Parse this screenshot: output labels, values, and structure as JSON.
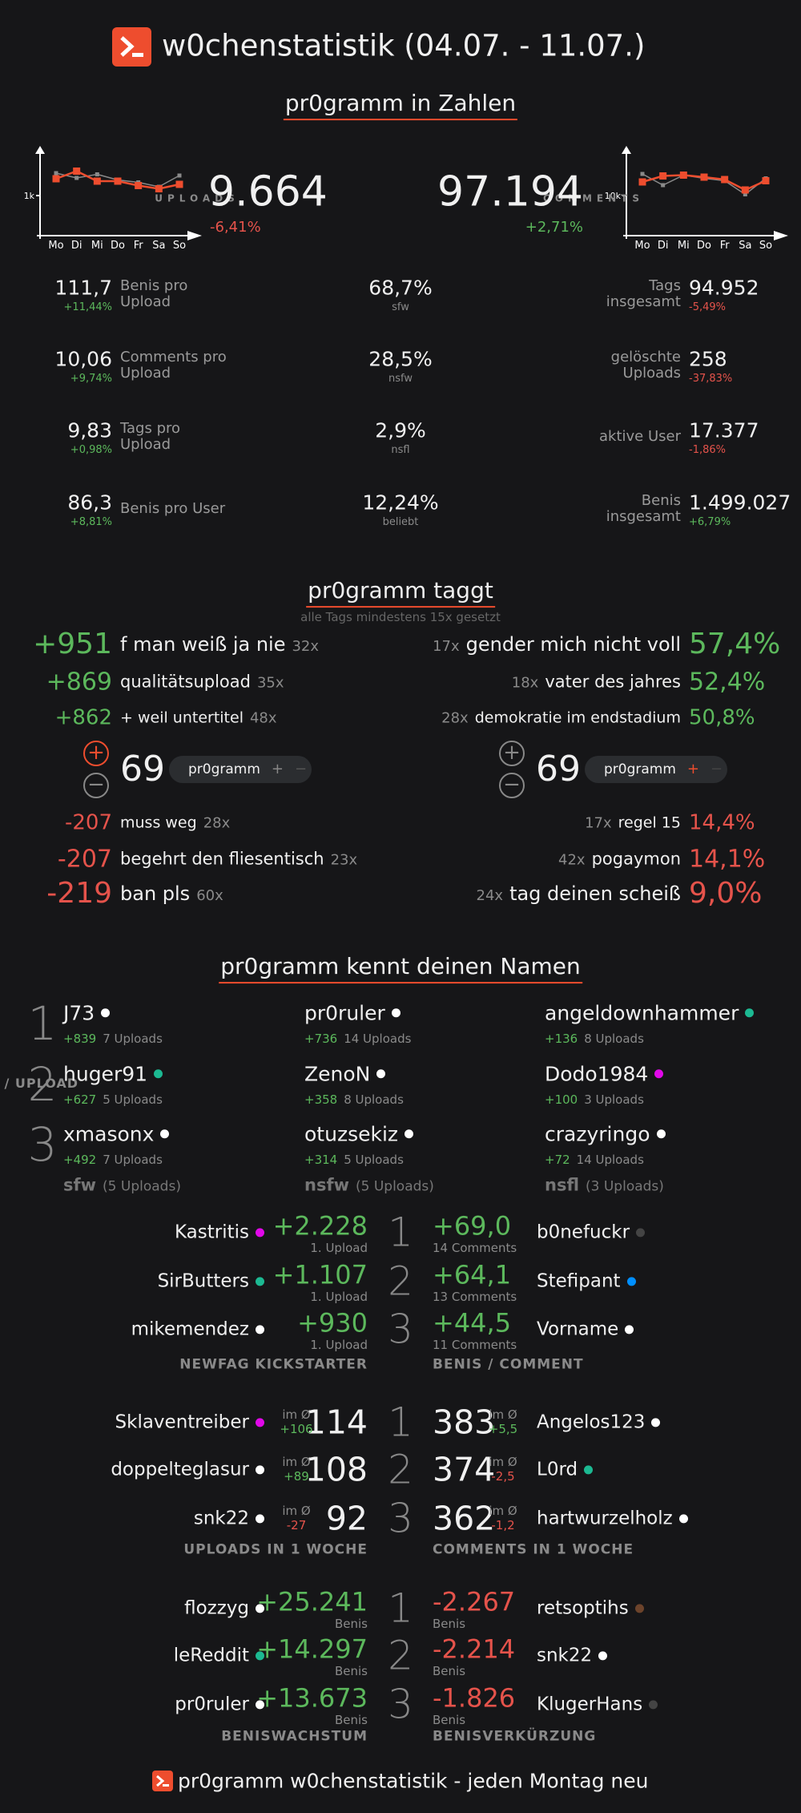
{
  "header": {
    "title": "w0chenstatistik (04.07. - 11.07.)"
  },
  "zahlen": {
    "title": "pr0gramm in Zahlen",
    "uploads": {
      "label": "UPLOADS",
      "value": "9.664",
      "change": "-6,41%",
      "chart": {
        "type": "line",
        "categories": [
          "Mo",
          "Di",
          "Mi",
          "Do",
          "Fr",
          "Sa",
          "So"
        ],
        "ylim": [
          0,
          2000
        ],
        "yticks": [
          {
            "value": 1000,
            "label": "1k"
          }
        ],
        "series": [
          {
            "color": "#ee4d2e",
            "values": [
              1420,
              1610,
              1360,
              1360,
              1250,
              1170,
              1280
            ]
          },
          {
            "color": "#8a8a8a",
            "values": [
              1560,
              1440,
              1530,
              1390,
              1330,
              1220,
              1500
            ]
          }
        ]
      }
    },
    "comments": {
      "label": "COMMENTS",
      "value": "97.194",
      "change": "+2,71%",
      "chart": {
        "type": "line",
        "categories": [
          "Mo",
          "Di",
          "Mi",
          "Do",
          "Fr",
          "Sa",
          "So"
        ],
        "ylim": [
          0,
          20000
        ],
        "yticks": [
          {
            "value": 10000,
            "label": "10k"
          }
        ],
        "series": [
          {
            "color": "#ee4d2e",
            "values": [
              13400,
              14900,
              15100,
              14600,
              14000,
              11400,
              13700
            ]
          },
          {
            "color": "#8a8a8a",
            "values": [
              15400,
              12600,
              15100,
              14300,
              13700,
              10300,
              14300
            ]
          }
        ]
      }
    },
    "rows": [
      {
        "left": {
          "value": "111,7",
          "change": "+11,44%",
          "label": "Benis pro Upload"
        },
        "center": {
          "value": "68,7%",
          "label": "sfw"
        },
        "right": {
          "label": "Tags insgesamt",
          "value": "94.952",
          "change": "-5,49%"
        }
      },
      {
        "left": {
          "value": "10,06",
          "change": "+9,74%",
          "label": "Comments pro Upload"
        },
        "center": {
          "value": "28,5%",
          "label": "nsfw"
        },
        "right": {
          "label": "gelöschte Uploads",
          "value": "258",
          "change": "-37,83%"
        }
      },
      {
        "left": {
          "value": "9,83",
          "change": "+0,98%",
          "label": "Tags pro Upload"
        },
        "center": {
          "value": "2,9%",
          "label": "nsfl"
        },
        "right": {
          "label": "aktive User",
          "value": "17.377",
          "change": "-1,86%"
        }
      },
      {
        "left": {
          "value": "86,3",
          "change": "+8,81%",
          "label": "Benis pro User"
        },
        "center": {
          "value": "12,24%",
          "label": "beliebt"
        },
        "right": {
          "label": "Benis insgesamt",
          "value": "1.499.027",
          "change": "+6,79%"
        }
      }
    ]
  },
  "taggt": {
    "title": "pr0gramm taggt",
    "subtitle": "alle Tags mindestens 15x gesetzt",
    "best": [
      {
        "score": "+951",
        "tag": "f man weiß ja nie",
        "count": "32x"
      },
      {
        "score": "+869",
        "tag": "qualitätsupload",
        "count": "35x"
      },
      {
        "score": "+862",
        "tag": "+ weil untertitel",
        "count": "48x"
      }
    ],
    "worst": [
      {
        "score": "-207",
        "tag": "muss weg",
        "count": "28x"
      },
      {
        "score": "-207",
        "tag": "begehrt den fliesentisch",
        "count": "23x"
      },
      {
        "score": "-219",
        "tag": "ban pls",
        "count": "60x"
      }
    ],
    "high": [
      {
        "count": "17x",
        "tag": "gender mich nicht voll",
        "share": "57,4%"
      },
      {
        "count": "18x",
        "tag": "vater des jahres",
        "share": "52,4%"
      },
      {
        "count": "28x",
        "tag": "demokratie im endstadium",
        "share": "50,8%"
      }
    ],
    "low": [
      {
        "count": "17x",
        "tag": "regel 15",
        "share": "14,4%"
      },
      {
        "count": "42x",
        "tag": "pogaymon",
        "share": "14,1%"
      },
      {
        "count": "24x",
        "tag": "tag deinen scheiß",
        "share": "9,0%"
      }
    ],
    "widgets": [
      {
        "score": "69",
        "tag": "pr0gramm"
      },
      {
        "score": "69",
        "tag": "pr0gramm"
      }
    ]
  },
  "namen": {
    "title": "pr0gramm kennt deinen Namen",
    "axis_label": "BENIS / UPLOAD",
    "ranks": [
      "1",
      "2",
      "3"
    ],
    "columns": [
      {
        "name": "sfw",
        "note": "(5 Uploads)",
        "users": [
          {
            "name": "J73",
            "color": "#ffffff",
            "benis": "+839",
            "uploads": "7 Uploads"
          },
          {
            "name": "huger91",
            "color": "#1cb992",
            "benis": "+627",
            "uploads": "5 Uploads"
          },
          {
            "name": "xmasonx",
            "color": "#ffffff",
            "benis": "+492",
            "uploads": "7 Uploads"
          }
        ]
      },
      {
        "name": "nsfw",
        "note": "(5 Uploads)",
        "users": [
          {
            "name": "pr0ruler",
            "color": "#ffffff",
            "benis": "+736",
            "uploads": "14 Uploads"
          },
          {
            "name": "ZenoN",
            "color": "#ffffff",
            "benis": "+358",
            "uploads": "8 Uploads"
          },
          {
            "name": "otuzsekiz",
            "color": "#ffffff",
            "benis": "+314",
            "uploads": "5 Uploads"
          }
        ]
      },
      {
        "name": "nsfl",
        "note": "(3 Uploads)",
        "users": [
          {
            "name": "angeldownhammer",
            "color": "#1cb992",
            "benis": "+136",
            "uploads": "8 Uploads"
          },
          {
            "name": "Dodo1984",
            "color": "#e108e9",
            "benis": "+100",
            "uploads": "3 Uploads"
          },
          {
            "name": "crazyringo",
            "color": "#ffffff",
            "benis": "+72",
            "uploads": "14 Uploads"
          }
        ]
      }
    ]
  },
  "rankings": [
    {
      "left": {
        "label": "NEWFAG KICKSTARTER",
        "entries": [
          {
            "name": "Kastritis",
            "color": "#e108e9",
            "value": "+2.228",
            "sub": "1. Upload"
          },
          {
            "name": "SirButters",
            "color": "#1cb992",
            "value": "+1.107",
            "sub": "1. Upload"
          },
          {
            "name": "mikemendez",
            "color": "#ffffff",
            "value": "+930",
            "sub": "1. Upload"
          }
        ]
      },
      "right": {
        "label": "BENIS / COMMENT",
        "entries": [
          {
            "value": "+69,0",
            "sub": "14 Comments",
            "name": "b0nefuckr",
            "color": "#444444"
          },
          {
            "value": "+64,1",
            "sub": "13 Comments",
            "name": "Stefipant",
            "color": "#008fff"
          },
          {
            "value": "+44,5",
            "sub": "11 Comments",
            "name": "Vorname",
            "color": "#ffffff"
          }
        ]
      }
    },
    {
      "left": {
        "label": "UPLOADS IN 1 WOCHE",
        "entries": [
          {
            "name": "Sklaventreiber",
            "color": "#e108e9",
            "note": "im Ø",
            "avg": "+106",
            "value": "114"
          },
          {
            "name": "doppelteglasur",
            "color": "#ffffff",
            "note": "im Ø",
            "avg": "+89",
            "value": "108"
          },
          {
            "name": "snk22",
            "color": "#ffffff",
            "note": "im Ø",
            "avg": "-27",
            "value": "92"
          }
        ]
      },
      "right": {
        "label": "COMMENTS IN 1 WOCHE",
        "entries": [
          {
            "value": "383",
            "note": "im Ø",
            "avg": "+5,5",
            "name": "Angelos123",
            "color": "#ffffff"
          },
          {
            "value": "374",
            "note": "im Ø",
            "avg": "-2,5",
            "name": "L0rd",
            "color": "#1cb992"
          },
          {
            "value": "362",
            "note": "im Ø",
            "avg": "-1,2",
            "name": "hartwurzelholz",
            "color": "#ffffff"
          }
        ]
      }
    },
    {
      "left": {
        "label": "BENISWACHSTUM",
        "entries": [
          {
            "name": "flozzyg",
            "color": "#ffffff",
            "value": "+25.241",
            "sub": "Benis"
          },
          {
            "name": "leReddit",
            "color": "#1cb992",
            "value": "+14.297",
            "sub": "Benis"
          },
          {
            "name": "pr0ruler",
            "color": "#ffffff",
            "value": "+13.673",
            "sub": "Benis"
          }
        ]
      },
      "right": {
        "label": "BENISVERKÜRZUNG",
        "entries": [
          {
            "value": "-2.267",
            "sub": "Benis",
            "name": "retsoptihs",
            "color": "#6c432b"
          },
          {
            "value": "-2.214",
            "sub": "Benis",
            "name": "snk22",
            "color": "#ffffff"
          },
          {
            "value": "-1.826",
            "sub": "Benis",
            "name": "KlugerHans",
            "color": "#444444"
          }
        ]
      }
    }
  ],
  "footer": {
    "text": "pr0gramm w0chenstatistik - jeden Montag neu"
  }
}
